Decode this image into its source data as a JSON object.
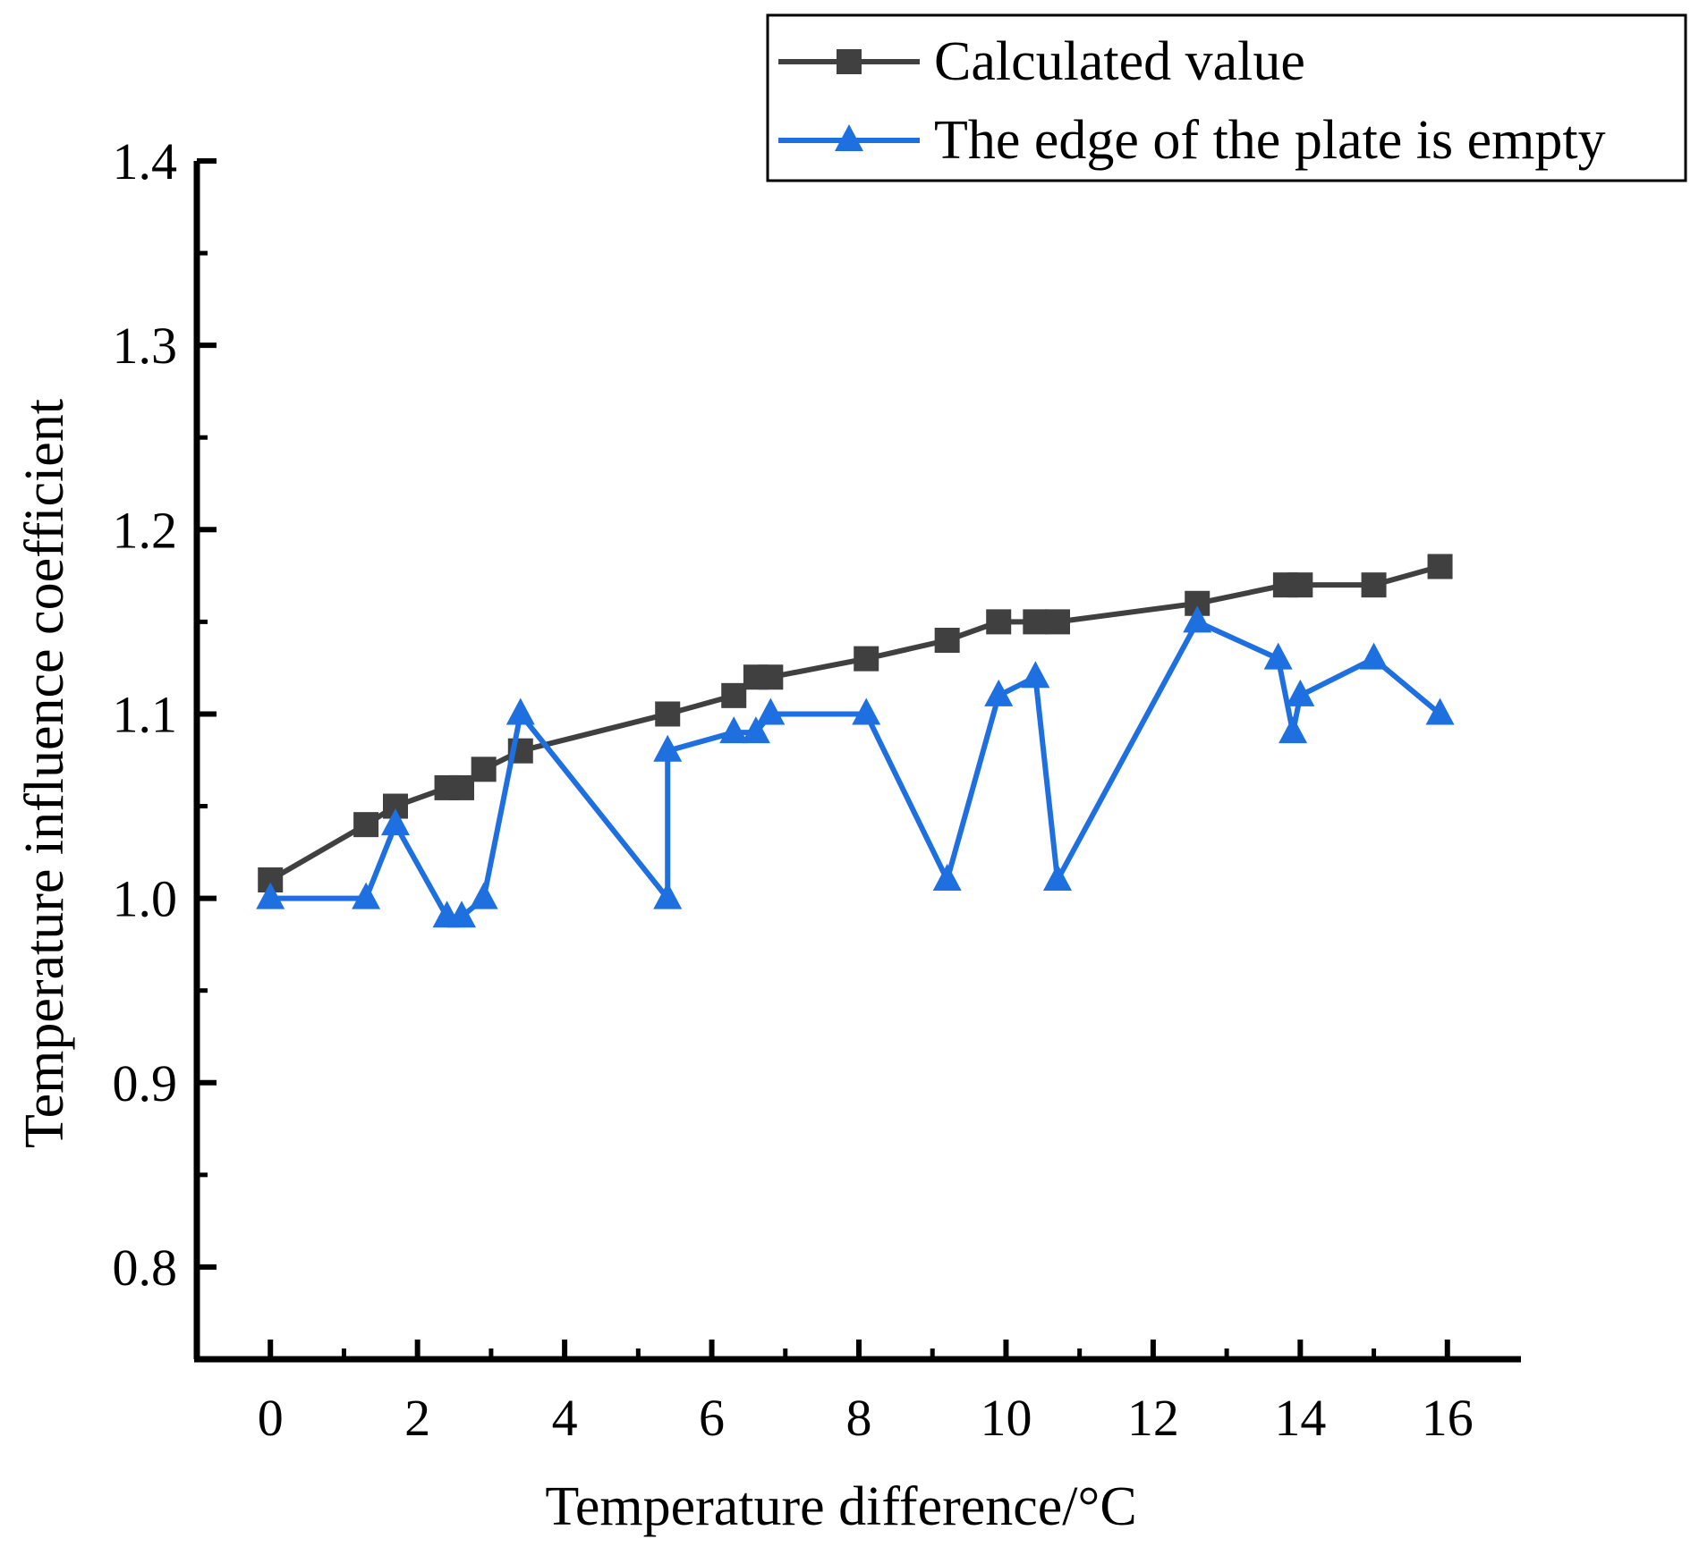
{
  "chart_data": {
    "type": "line",
    "title": "",
    "xlabel": "Temperature difference/°C",
    "ylabel": "Temperature influence coefficient",
    "xlim": [
      -1,
      17
    ],
    "ylim": [
      0.75,
      1.4
    ],
    "x_ticks": [
      0,
      2,
      4,
      6,
      8,
      10,
      12,
      14,
      16
    ],
    "x_tick_labels": [
      "0",
      "2",
      "4",
      "6",
      "8",
      "10",
      "12",
      "14",
      "16"
    ],
    "y_ticks": [
      0.8,
      0.9,
      1.0,
      1.1,
      1.2,
      1.3,
      1.4
    ],
    "y_tick_labels": [
      "0.8",
      "0.9",
      "1.0",
      "1.1",
      "1.2",
      "1.3",
      "1.4"
    ],
    "grid": false,
    "legend_position": "top-right",
    "series": [
      {
        "name": "Calculated value",
        "color": "#404040",
        "marker": "square",
        "x": [
          0,
          1.3,
          1.7,
          2.4,
          2.6,
          2.9,
          3.4,
          5.4,
          6.3,
          6.6,
          6.8,
          8.1,
          9.2,
          9.9,
          10.4,
          10.7,
          12.6,
          13.8,
          14.0,
          15.0,
          15.9
        ],
        "y": [
          1.01,
          1.04,
          1.05,
          1.06,
          1.06,
          1.07,
          1.08,
          1.1,
          1.11,
          1.12,
          1.12,
          1.13,
          1.14,
          1.15,
          1.15,
          1.15,
          1.16,
          1.17,
          1.17,
          1.17,
          1.18
        ]
      },
      {
        "name": "The edge of the plate is empty",
        "color": "#1e6fe0",
        "marker": "triangle",
        "x": [
          0,
          1.3,
          1.7,
          2.4,
          2.6,
          2.9,
          3.4,
          5.4,
          5.4,
          6.3,
          6.6,
          6.8,
          8.1,
          9.2,
          9.9,
          10.4,
          10.7,
          12.6,
          13.7,
          13.9,
          14.0,
          15.0,
          15.9
        ],
        "y": [
          1.0,
          1.0,
          1.04,
          0.99,
          0.99,
          1.0,
          1.1,
          1.0,
          1.08,
          1.09,
          1.09,
          1.1,
          1.1,
          1.01,
          1.11,
          1.12,
          1.01,
          1.15,
          1.13,
          1.09,
          1.11,
          1.13,
          1.1
        ]
      }
    ]
  }
}
